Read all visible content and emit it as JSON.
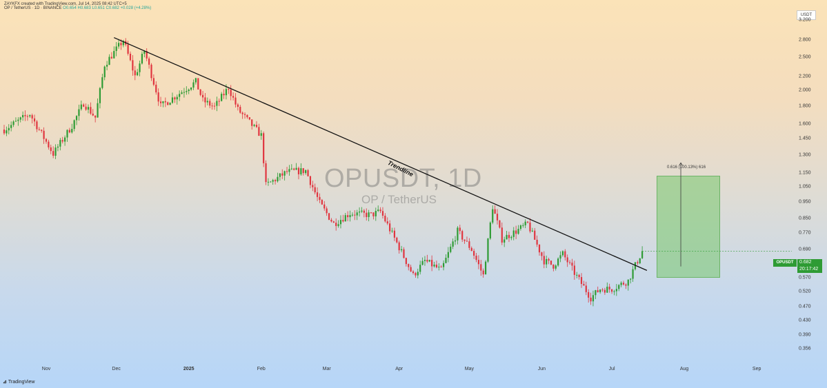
{
  "header": {
    "attribution": "ZAYKFX created with TradingView.com, Jul 14, 2025 08:42 UTC+5",
    "symbol_line": "OP / TetherUS · 1D · BINANCE",
    "ohlc": "O0.654  H0.683  L0.651  C0.682  +0.028 (+4.28%)"
  },
  "watermark": {
    "symbol": "OPUSDT, 1D",
    "name": "OP / TetherUS"
  },
  "footer": {
    "brand": "TradingView"
  },
  "colors": {
    "up": "#2e9b34",
    "down": "#e0353f",
    "trendline": "#111111",
    "target_fill": "#8fd18a"
  },
  "chart_data": {
    "type": "candlestick",
    "title": "OPUSDT, 1D",
    "subtitle": "OP / TetherUS",
    "exchange": "BINANCE",
    "currency_unit": "USDT",
    "y_scale": "log",
    "ylim": [
      0.33,
      3.5
    ],
    "y_ticks": [
      "3.200",
      "2.800",
      "2.500",
      "2.200",
      "2.000",
      "1.800",
      "1.600",
      "1.450",
      "1.300",
      "1.150",
      "1.050",
      "0.950",
      "0.850",
      "0.770",
      "0.690",
      "0.630",
      "0.570",
      "0.520",
      "0.470",
      "0.430",
      "0.390",
      "0.356"
    ],
    "x_ticks": [
      "Nov",
      "Dec",
      "2025",
      "Feb",
      "Mar",
      "Apr",
      "May",
      "Jun",
      "Jul",
      "Aug",
      "Sep"
    ],
    "x_range": [
      "2024-10-14",
      "2025-09-16"
    ],
    "last_price": "0.682",
    "countdown": "20:17:42",
    "symbol_tag": "OPUSDT",
    "trendline": {
      "label": "Trendline",
      "from": {
        "x": "2024-11-30",
        "y": 2.85
      },
      "to": {
        "x": "2025-07-16",
        "y": 0.6
      }
    },
    "target_range": {
      "label": "0.616 (100.13%) 616",
      "from": {
        "x": "2025-07-16",
        "y": 0.616
      },
      "to": {
        "x": "2025-08-14",
        "y": 1.233
      }
    },
    "anchors": [
      [
        "2024-10-14",
        1.54
      ],
      [
        "2024-10-25",
        1.71
      ],
      [
        "2024-11-04",
        1.31
      ],
      [
        "2024-11-12",
        1.58
      ],
      [
        "2024-11-17",
        1.84
      ],
      [
        "2024-11-22",
        1.67
      ],
      [
        "2024-11-26",
        2.38
      ],
      [
        "2024-12-04",
        2.8
      ],
      [
        "2024-12-09",
        2.2
      ],
      [
        "2024-12-13",
        2.61
      ],
      [
        "2024-12-20",
        1.8
      ],
      [
        "2024-12-26",
        1.92
      ],
      [
        "2025-01-04",
        2.12
      ],
      [
        "2025-01-07",
        1.87
      ],
      [
        "2025-01-12",
        1.79
      ],
      [
        "2025-01-18",
        2.04
      ],
      [
        "2025-01-22",
        1.76
      ],
      [
        "2025-02-01",
        1.48
      ],
      [
        "2025-02-03",
        1.06
      ],
      [
        "2025-02-12",
        1.16
      ],
      [
        "2025-02-20",
        1.17
      ],
      [
        "2025-02-26",
        0.94
      ],
      [
        "2025-03-04",
        0.82
      ],
      [
        "2025-03-11",
        0.88
      ],
      [
        "2025-03-20",
        0.87
      ],
      [
        "2025-03-24",
        0.89
      ],
      [
        "2025-04-01",
        0.7
      ],
      [
        "2025-04-07",
        0.58
      ],
      [
        "2025-04-12",
        0.64
      ],
      [
        "2025-04-19",
        0.6
      ],
      [
        "2025-04-26",
        0.78
      ],
      [
        "2025-05-02",
        0.69
      ],
      [
        "2025-05-07",
        0.58
      ],
      [
        "2025-05-11",
        0.92
      ],
      [
        "2025-05-15",
        0.74
      ],
      [
        "2025-05-21",
        0.78
      ],
      [
        "2025-05-26",
        0.82
      ],
      [
        "2025-06-02",
        0.64
      ],
      [
        "2025-06-06",
        0.62
      ],
      [
        "2025-06-10",
        0.67
      ],
      [
        "2025-06-15",
        0.59
      ],
      [
        "2025-06-22",
        0.5
      ],
      [
        "2025-06-26",
        0.53
      ],
      [
        "2025-07-01",
        0.53
      ],
      [
        "2025-07-08",
        0.56
      ],
      [
        "2025-07-11",
        0.62
      ],
      [
        "2025-07-14",
        0.682
      ]
    ]
  }
}
